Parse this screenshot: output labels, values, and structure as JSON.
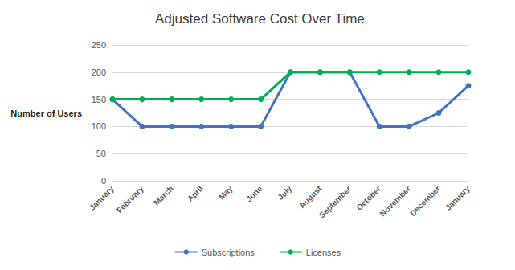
{
  "chart_data": {
    "type": "line",
    "title": "Adjusted Software Cost Over Time",
    "y_label": "Number of Users",
    "categories": [
      "January",
      "February",
      "March",
      "April",
      "May",
      "June",
      "July",
      "August",
      "September",
      "October",
      "November",
      "December",
      "January"
    ],
    "series": [
      {
        "name": "Subscriptions",
        "color": "#4472c4",
        "values": [
          150,
          100,
          100,
          100,
          100,
          100,
          200,
          200,
          200,
          100,
          100,
          125,
          175
        ]
      },
      {
        "name": "Licenses",
        "color": "#00b050",
        "values": [
          150,
          150,
          150,
          150,
          150,
          150,
          200,
          200,
          200,
          200,
          200,
          200,
          200
        ]
      }
    ],
    "ylim": [
      0,
      250
    ],
    "yticks": [
      0,
      50,
      100,
      150,
      200,
      250
    ],
    "grid": true,
    "legend": "bottom",
    "marker": "circle"
  }
}
